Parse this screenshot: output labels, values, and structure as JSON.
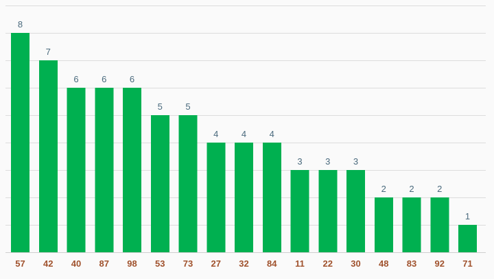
{
  "chart_data": {
    "type": "bar",
    "categories": [
      "57",
      "42",
      "40",
      "87",
      "98",
      "53",
      "73",
      "27",
      "32",
      "84",
      "11",
      "22",
      "30",
      "48",
      "83",
      "92",
      "71"
    ],
    "values": [
      8,
      7,
      6,
      6,
      6,
      5,
      5,
      4,
      4,
      4,
      3,
      3,
      3,
      2,
      2,
      2,
      1
    ],
    "ylim": [
      0,
      9
    ],
    "grid": true,
    "data_labels": true,
    "colors": {
      "bar": "#00b050",
      "grid": "#dcdcdc",
      "value_label": "#4a6a7d",
      "tick_label": "#a0522d",
      "background": "#fafafa"
    }
  }
}
